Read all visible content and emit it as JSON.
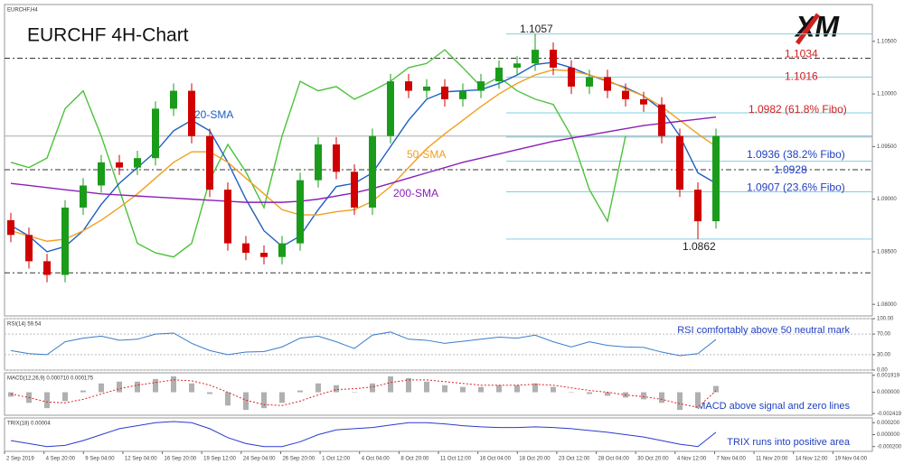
{
  "chart_data": [
    {
      "type": "candlestick",
      "symbol": "EURCHF,H4",
      "title": "EURCHF 4H-Chart",
      "logo": "XM",
      "up_color": "#1a9c1a",
      "down_color": "#d00000",
      "open": [
        1.088,
        1.0866,
        1.0841,
        1.0828,
        1.0892,
        1.0913,
        1.0935,
        1.093,
        1.0939,
        1.0986,
        1.1003,
        1.096,
        1.0909,
        1.0858,
        1.0849,
        1.0845,
        1.0858,
        1.0918,
        1.0952,
        1.0926,
        1.0892,
        1.096,
        1.1012,
        1.1003,
        1.1007,
        1.0995,
        1.1003,
        1.1012,
        1.1025,
        1.1029,
        1.1042,
        1.1025,
        1.1007,
        1.1016,
        1.1003,
        1.0995,
        1.099,
        1.096,
        1.0909,
        1.0879
      ],
      "high": [
        1.0887,
        1.0873,
        1.0848,
        1.0899,
        1.092,
        1.0942,
        1.0942,
        1.0946,
        1.0993,
        1.101,
        1.101,
        1.0967,
        1.0916,
        1.0865,
        1.0856,
        1.0865,
        1.0925,
        1.0959,
        1.0959,
        1.0933,
        1.0967,
        1.1019,
        1.1019,
        1.1014,
        1.1014,
        1.101,
        1.1019,
        1.1032,
        1.1036,
        1.1057,
        1.1049,
        1.1032,
        1.1023,
        1.1023,
        1.101,
        1.1002,
        1.0997,
        1.0967,
        1.0916,
        1.0967
      ],
      "low": [
        1.0859,
        1.0834,
        1.0821,
        1.0821,
        1.0885,
        1.0906,
        1.0923,
        1.0923,
        1.0932,
        1.0979,
        1.0953,
        1.0902,
        1.0851,
        1.0842,
        1.0838,
        1.0838,
        1.0851,
        1.0911,
        1.0919,
        1.0885,
        1.0885,
        1.0953,
        1.0996,
        1.0996,
        1.0988,
        1.0988,
        1.0996,
        1.1005,
        1.1018,
        1.1022,
        1.1018,
        1.1,
        1.1,
        1.0996,
        1.0988,
        1.0983,
        1.0953,
        1.0902,
        1.0862,
        1.0872
      ],
      "close": [
        1.0866,
        1.0841,
        1.0828,
        1.0892,
        1.0913,
        1.0935,
        1.093,
        1.0939,
        1.0986,
        1.1003,
        1.096,
        1.0909,
        1.0858,
        1.0849,
        1.0845,
        1.0858,
        1.0918,
        1.0952,
        1.0926,
        1.0892,
        1.096,
        1.1012,
        1.1003,
        1.1007,
        1.0995,
        1.1003,
        1.1012,
        1.1025,
        1.1029,
        1.1042,
        1.1025,
        1.1007,
        1.1016,
        1.1003,
        1.0995,
        1.099,
        1.096,
        1.0909,
        1.0879,
        1.096
      ],
      "series": [
        {
          "color": "#4cc23a",
          "values": [
            1.0935,
            1.093,
            1.0939,
            1.0986,
            1.1003,
            1.096,
            1.0909,
            1.0858,
            1.0849,
            1.0845,
            1.0858,
            1.0918,
            1.0952,
            1.0926,
            1.0892,
            1.096,
            1.1012,
            1.1003,
            1.1007,
            1.0995,
            1.1003,
            1.1012,
            1.1025,
            1.1029,
            1.1042,
            1.1025,
            1.1007,
            1.1016,
            1.1003,
            1.0995,
            1.099,
            1.096,
            1.0909,
            1.0879,
            1.096,
            null,
            null,
            null,
            null,
            null
          ]
        },
        {
          "name": "20-SMA",
          "color": "#1f5fbf",
          "values": [
            1.0875,
            1.0865,
            1.085,
            1.0855,
            1.087,
            1.0895,
            1.0915,
            1.093,
            1.0945,
            1.0965,
            1.0975,
            1.0965,
            1.0935,
            1.09,
            1.087,
            1.0855,
            1.0865,
            1.089,
            1.0912,
            1.0915,
            1.0925,
            1.095,
            1.0975,
            1.0995,
            1.1002,
            1.1003,
            1.1004,
            1.101,
            1.1018,
            1.1028,
            1.103,
            1.1025,
            1.1018,
            1.1012,
            1.1006,
            1.0998,
            1.0985,
            1.096,
            1.0925,
            1.0915
          ]
        },
        {
          "name": "50-SMA",
          "color": "#f0a020",
          "values": [
            1.087,
            1.0865,
            1.086,
            1.0862,
            1.087,
            1.088,
            1.0892,
            1.0905,
            1.092,
            1.0935,
            1.0945,
            1.0945,
            1.0935,
            1.092,
            1.0905,
            1.089,
            1.0885,
            1.0885,
            1.0888,
            1.089,
            1.0898,
            1.0912,
            1.093,
            1.0948,
            1.0962,
            1.0975,
            1.0988,
            1.1,
            1.101,
            1.1018,
            1.1023,
            1.1022,
            1.1018,
            1.1013,
            1.1005,
            1.0998,
            1.0988,
            1.0975,
            1.0962,
            1.095
          ]
        },
        {
          "name": "200-SMA",
          "color": "#8a1fb8",
          "values": [
            1.0915,
            1.0913,
            1.0911,
            1.0909,
            1.0907,
            1.0905,
            1.0904,
            1.0903,
            1.0902,
            1.0901,
            1.09,
            1.0899,
            1.0898,
            1.0897,
            1.0897,
            1.0897,
            1.0898,
            1.09,
            1.0903,
            1.0906,
            1.091,
            1.0915,
            1.092,
            1.0925,
            1.093,
            1.0935,
            1.0939,
            1.0943,
            1.0947,
            1.0951,
            1.0955,
            1.0958,
            1.0961,
            1.0964,
            1.0967,
            1.097,
            1.0972,
            1.0974,
            1.0976,
            1.0978
          ]
        }
      ],
      "hlines": [
        {
          "value": 1.1057,
          "kind": "fibo",
          "color": "#7fd0e0"
        },
        {
          "value": 1.1016,
          "kind": "fibo",
          "color": "#7fd0e0"
        },
        {
          "value": 1.0982,
          "kind": "fibo",
          "color": "#7fd0e0"
        },
        {
          "value": 1.0959,
          "kind": "fibo",
          "color": "#7fd0e0"
        },
        {
          "value": 1.0936,
          "kind": "fibo",
          "color": "#7fd0e0"
        },
        {
          "value": 1.0907,
          "kind": "fibo",
          "color": "#7fd0e0"
        },
        {
          "value": 1.0862,
          "kind": "fibo",
          "color": "#7fd0e0"
        },
        {
          "value": 1.1034,
          "kind": "dash",
          "color": "#333333"
        },
        {
          "value": 1.0928,
          "kind": "dash",
          "color": "#333333"
        },
        {
          "value": 1.083,
          "kind": "dash",
          "color": "#333333"
        },
        {
          "value": 1.096,
          "kind": "price",
          "color": "#aaaaaa"
        }
      ],
      "annotations": [
        {
          "value": 1.1057,
          "color": "#222222"
        },
        {
          "value": 1.1034,
          "color": "#d02020"
        },
        {
          "value": 1.1016,
          "color": "#d02020"
        },
        {
          "value": 1.0982,
          "text": "1.0982 (61.8% Fibo)",
          "color": "#d02020"
        },
        {
          "value": 1.0936,
          "text": "1.0936 (38.2% Fibo)",
          "color": "#2040c0"
        },
        {
          "value": 1.0928,
          "color": "#2040c0"
        },
        {
          "value": 1.0907,
          "text": "1.0907 (23.6% Fibo)",
          "color": "#2040c0"
        },
        {
          "value": 1.0862,
          "color": "#222222"
        }
      ],
      "ylim": [
        1.0789,
        1.1085
      ],
      "yticks": [
        {
          "value": 1.08,
          "label": "1.08000"
        },
        {
          "value": 1.085,
          "label": "1.08500"
        },
        {
          "value": 1.09,
          "label": "1.09000"
        },
        {
          "value": 1.095,
          "label": "1.09500"
        },
        {
          "value": 1.1,
          "label": "1.10000"
        },
        {
          "value": 1.105,
          "label": "1.10500"
        }
      ]
    },
    {
      "type": "line",
      "title": "RSI(14) 59.54",
      "annotation": "RSI comfortably above 50 neutral mark",
      "annotation_color": "#2040c0",
      "grid": true,
      "series": [
        {
          "color": "#3a7cc8",
          "values": [
            38,
            32,
            30,
            55,
            62,
            66,
            58,
            60,
            70,
            72,
            52,
            38,
            30,
            35,
            36,
            45,
            62,
            66,
            55,
            42,
            68,
            74,
            60,
            58,
            52,
            56,
            60,
            64,
            62,
            68,
            55,
            45,
            55,
            48,
            45,
            44,
            35,
            28,
            32,
            59.54
          ]
        }
      ],
      "ylim": [
        0,
        100
      ],
      "yticks": [
        {
          "value": 100,
          "label": "100.00"
        },
        {
          "value": 70,
          "label": "70.00"
        },
        {
          "value": 30,
          "label": "30.00"
        },
        {
          "value": 0,
          "label": "0.00"
        }
      ]
    },
    {
      "type": "macd",
      "title": "MACD(12,26,9) 0.000710 0.000175",
      "annotation": "MACD above signal and zero lines",
      "annotation_color": "#2040c0",
      "color": "#b0b0b0",
      "values": [
        -0.0005,
        -0.0012,
        -0.0018,
        -0.001,
        0.0002,
        0.001,
        0.0012,
        0.0012,
        0.0015,
        0.0018,
        0.001,
        -0.0002,
        -0.0015,
        -0.002,
        -0.0018,
        -0.0012,
        0.0002,
        0.001,
        0.0008,
        0.0,
        0.001,
        0.0018,
        0.0016,
        0.0012,
        0.0008,
        0.0006,
        0.0006,
        0.0008,
        0.0008,
        0.001,
        0.0006,
        0.0,
        -0.0002,
        -0.0004,
        -0.0006,
        -0.0008,
        -0.0012,
        -0.002,
        -0.0018,
        0.00071
      ],
      "series": [
        {
          "color": "#e02020",
          "values": [
            -0.0002,
            -0.0006,
            -0.0011,
            -0.0012,
            -0.0008,
            -0.0002,
            0.0004,
            0.0008,
            0.0011,
            0.0014,
            0.0013,
            0.0008,
            0.0,
            -0.0009,
            -0.0014,
            -0.0015,
            -0.001,
            -0.0003,
            0.0003,
            0.0004,
            0.0006,
            0.0011,
            0.0014,
            0.0014,
            0.0012,
            0.001,
            0.0008,
            0.0008,
            0.0008,
            0.0009,
            0.0008,
            0.0005,
            0.0002,
            0.0,
            -0.0003,
            -0.0005,
            -0.0008,
            -0.0013,
            -0.0017,
            0.000175
          ]
        }
      ],
      "ylim": [
        -0.0026,
        0.0022
      ],
      "yticks": [
        {
          "value": 0.001919,
          "label": "0.001919"
        },
        {
          "value": 0,
          "label": "0.000000"
        },
        {
          "value": -0.002419,
          "label": "-0.002419"
        }
      ]
    },
    {
      "type": "line",
      "title": "TRIX(18) 0.00004",
      "annotation": "TRIX runs into positive area",
      "annotation_color": "#2040c0",
      "series": [
        {
          "color": "#2a3ad0",
          "values": [
            -0.0001,
            -0.00015,
            -0.0002,
            -0.00018,
            -0.0001,
            0.0,
            0.0001,
            0.00015,
            0.0002,
            0.00022,
            0.0002,
            0.0001,
            -5e-05,
            -0.00015,
            -0.0002,
            -0.0002,
            -0.00012,
            0.0,
            8e-05,
            0.0001,
            0.00012,
            0.00016,
            0.0002,
            0.0002,
            0.00018,
            0.00015,
            0.00013,
            0.00012,
            0.00012,
            0.00013,
            0.00012,
            0.0001,
            7e-05,
            4e-05,
            0.0,
            -4e-05,
            -0.0001,
            -0.00016,
            -0.0002,
            4e-05
          ]
        }
      ],
      "ylim": [
        -0.00028,
        0.00028
      ],
      "yticks": [
        {
          "value": 0.0002,
          "label": "0.000200"
        },
        {
          "value": 0,
          "label": "0.000000"
        },
        {
          "value": -0.0002,
          "label": "-0.000200"
        }
      ],
      "x_labels": [
        "2 Sep 2019",
        "4 Sep 20:00",
        "9 Sep 04:00",
        "12 Sep 04:00",
        "16 Sep 20:00",
        "19 Sep 12:00",
        "24 Sep 04:00",
        "26 Sep 20:00",
        "1 Oct 12:00",
        "4 Oct 04:00",
        "8 Oct 20:00",
        "11 Oct 12:00",
        "16 Oct 04:00",
        "18 Oct 20:00",
        "23 Oct 12:00",
        "28 Oct 04:00",
        "30 Oct 20:00",
        "4 Nov 12:00",
        "7 Nov 04:00",
        "11 Nov 20:00",
        "14 Nov 12:00",
        "19 Nov 04:00"
      ]
    }
  ]
}
